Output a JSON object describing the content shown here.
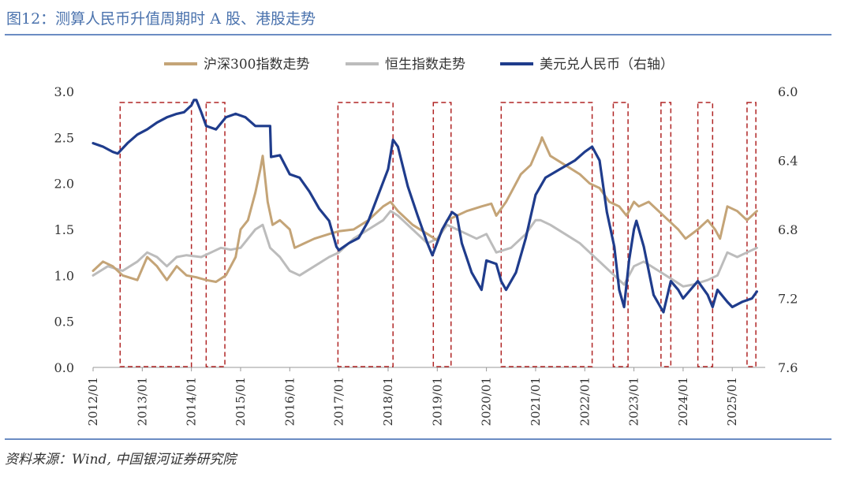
{
  "title": "图12：测算人民币升值周期时 A 股、港股走势",
  "source": "资料来源：Wind,  中国银河证券研究院",
  "chart_data": {
    "type": "line",
    "legend": [
      "沪深300指数走势",
      "恒生指数走势",
      "美元兑人民币（右轴）"
    ],
    "colors": {
      "hs300": "#c4a477",
      "hsi": "#bcbcbc",
      "usdcny": "#1f3c8c",
      "box": "#b02525",
      "axis": "#999999"
    },
    "x_ticks": [
      "2012/01",
      "2013/01",
      "2014/01",
      "2015/01",
      "2016/01",
      "2017/01",
      "2018/01",
      "2019/01",
      "2020/01",
      "2021/01",
      "2022/01",
      "2023/01",
      "2024/01",
      "2025/01"
    ],
    "x_range": [
      2012.0,
      2025.67
    ],
    "y_left": {
      "range": [
        0.0,
        3.0
      ],
      "ticks": [
        "0.0",
        "0.5",
        "1.0",
        "1.5",
        "2.0",
        "2.5",
        "3.0"
      ]
    },
    "y_right": {
      "range": [
        6.0,
        7.6
      ],
      "inverted": true,
      "ticks": [
        "6.0",
        "6.4",
        "6.8",
        "7.2",
        "7.6"
      ]
    },
    "series": [
      {
        "name": "沪深300指数走势",
        "key": "hs300",
        "axis": "left",
        "x": [
          2012.0,
          2012.2,
          2012.4,
          2012.6,
          2012.9,
          2013.1,
          2013.3,
          2013.5,
          2013.7,
          2013.9,
          2014.1,
          2014.3,
          2014.5,
          2014.7,
          2014.9,
          2015.0,
          2015.15,
          2015.3,
          2015.4,
          2015.45,
          2015.55,
          2015.65,
          2015.8,
          2016.0,
          2016.1,
          2016.3,
          2016.5,
          2016.8,
          2017.0,
          2017.3,
          2017.6,
          2017.9,
          2018.05,
          2018.2,
          2018.5,
          2018.8,
          2019.0,
          2019.2,
          2019.4,
          2019.6,
          2019.9,
          2020.1,
          2020.2,
          2020.4,
          2020.5,
          2020.7,
          2020.9,
          2021.1,
          2021.13,
          2021.3,
          2021.6,
          2021.9,
          2022.1,
          2022.3,
          2022.5,
          2022.7,
          2022.85,
          2023.0,
          2023.1,
          2023.3,
          2023.5,
          2023.7,
          2023.9,
          2024.05,
          2024.3,
          2024.5,
          2024.65,
          2024.75,
          2024.9,
          2025.1,
          2025.3,
          2025.5
        ],
        "y": [
          1.05,
          1.15,
          1.1,
          1.0,
          0.95,
          1.2,
          1.1,
          0.95,
          1.1,
          1.0,
          0.98,
          0.95,
          0.93,
          1.0,
          1.2,
          1.5,
          1.6,
          1.9,
          2.15,
          2.3,
          1.8,
          1.55,
          1.6,
          1.5,
          1.3,
          1.35,
          1.4,
          1.45,
          1.48,
          1.5,
          1.6,
          1.75,
          1.8,
          1.7,
          1.55,
          1.45,
          1.38,
          1.6,
          1.65,
          1.7,
          1.75,
          1.78,
          1.65,
          1.8,
          1.9,
          2.1,
          2.2,
          2.45,
          2.5,
          2.3,
          2.2,
          2.1,
          2.0,
          1.95,
          1.8,
          1.75,
          1.65,
          1.8,
          1.75,
          1.8,
          1.7,
          1.6,
          1.5,
          1.4,
          1.5,
          1.6,
          1.5,
          1.4,
          1.75,
          1.7,
          1.6,
          1.7
        ]
      },
      {
        "name": "恒生指数走势",
        "key": "hsi",
        "axis": "left",
        "x": [
          2012.0,
          2012.3,
          2012.6,
          2012.9,
          2013.1,
          2013.3,
          2013.5,
          2013.7,
          2013.9,
          2014.2,
          2014.4,
          2014.6,
          2014.8,
          2015.0,
          2015.3,
          2015.45,
          2015.6,
          2015.8,
          2016.0,
          2016.2,
          2016.5,
          2016.8,
          2017.0,
          2017.3,
          2017.6,
          2017.9,
          2018.05,
          2018.2,
          2018.5,
          2018.8,
          2019.0,
          2019.2,
          2019.4,
          2019.6,
          2019.8,
          2020.0,
          2020.2,
          2020.5,
          2020.8,
          2021.0,
          2021.1,
          2021.3,
          2021.6,
          2021.9,
          2022.1,
          2022.3,
          2022.6,
          2022.8,
          2023.0,
          2023.2,
          2023.5,
          2023.8,
          2024.0,
          2024.2,
          2024.5,
          2024.7,
          2024.9,
          2025.1,
          2025.3,
          2025.5
        ],
        "y": [
          1.0,
          1.1,
          1.05,
          1.15,
          1.25,
          1.2,
          1.1,
          1.2,
          1.22,
          1.2,
          1.25,
          1.3,
          1.28,
          1.3,
          1.5,
          1.55,
          1.3,
          1.2,
          1.05,
          1.0,
          1.1,
          1.2,
          1.25,
          1.4,
          1.5,
          1.6,
          1.7,
          1.65,
          1.5,
          1.35,
          1.4,
          1.55,
          1.5,
          1.45,
          1.4,
          1.45,
          1.25,
          1.3,
          1.45,
          1.6,
          1.6,
          1.55,
          1.45,
          1.35,
          1.25,
          1.15,
          1.0,
          0.9,
          1.1,
          1.15,
          1.05,
          0.95,
          0.88,
          0.9,
          0.95,
          1.0,
          1.25,
          1.2,
          1.25,
          1.3
        ]
      },
      {
        "name": "美元兑人民币（右轴）",
        "key": "usdcny",
        "axis": "right",
        "x": [
          2012.0,
          2012.2,
          2012.4,
          2012.5,
          2012.7,
          2012.9,
          2013.1,
          2013.3,
          2013.5,
          2013.7,
          2013.85,
          2014.0,
          2014.05,
          2014.1,
          2014.2,
          2014.3,
          2014.5,
          2014.7,
          2014.9,
          2015.1,
          2015.3,
          2015.5,
          2015.6,
          2015.62,
          2015.8,
          2016.0,
          2016.2,
          2016.4,
          2016.6,
          2016.8,
          2016.95,
          2017.0,
          2017.2,
          2017.4,
          2017.6,
          2017.8,
          2018.0,
          2018.1,
          2018.2,
          2018.4,
          2018.6,
          2018.8,
          2018.9,
          2019.1,
          2019.3,
          2019.4,
          2019.5,
          2019.7,
          2019.9,
          2020.0,
          2020.2,
          2020.3,
          2020.4,
          2020.6,
          2020.8,
          2021.0,
          2021.2,
          2021.5,
          2021.8,
          2022.0,
          2022.15,
          2022.3,
          2022.45,
          2022.6,
          2022.7,
          2022.8,
          2022.9,
          2023.0,
          2023.05,
          2023.2,
          2023.4,
          2023.6,
          2023.75,
          2023.9,
          2024.0,
          2024.3,
          2024.5,
          2024.6,
          2024.7,
          2024.9,
          2025.0,
          2025.2,
          2025.4,
          2025.5
        ],
        "y": [
          6.3,
          6.32,
          6.35,
          6.36,
          6.3,
          6.25,
          6.22,
          6.18,
          6.15,
          6.13,
          6.12,
          6.08,
          6.05,
          6.05,
          6.12,
          6.2,
          6.22,
          6.15,
          6.13,
          6.15,
          6.2,
          6.2,
          6.2,
          6.38,
          6.37,
          6.48,
          6.5,
          6.58,
          6.68,
          6.75,
          6.9,
          6.92,
          6.88,
          6.85,
          6.75,
          6.6,
          6.45,
          6.28,
          6.32,
          6.55,
          6.72,
          6.88,
          6.95,
          6.8,
          6.7,
          6.72,
          6.88,
          7.05,
          7.15,
          6.98,
          7.0,
          7.1,
          7.15,
          7.05,
          6.85,
          6.6,
          6.5,
          6.45,
          6.4,
          6.35,
          6.32,
          6.4,
          6.7,
          6.9,
          7.15,
          7.25,
          6.98,
          6.8,
          6.75,
          6.9,
          7.18,
          7.28,
          7.1,
          7.15,
          7.2,
          7.1,
          7.18,
          7.25,
          7.15,
          7.22,
          7.25,
          7.22,
          7.2,
          7.16
        ]
      }
    ],
    "boxes": [
      [
        2012.55,
        2014.0
      ],
      [
        2014.3,
        2014.68
      ],
      [
        2016.98,
        2018.1
      ],
      [
        2018.92,
        2019.28
      ],
      [
        2020.3,
        2022.15
      ],
      [
        2022.58,
        2022.88
      ],
      [
        2023.55,
        2023.75
      ],
      [
        2024.3,
        2024.6
      ],
      [
        2025.3,
        2025.48
      ]
    ]
  }
}
